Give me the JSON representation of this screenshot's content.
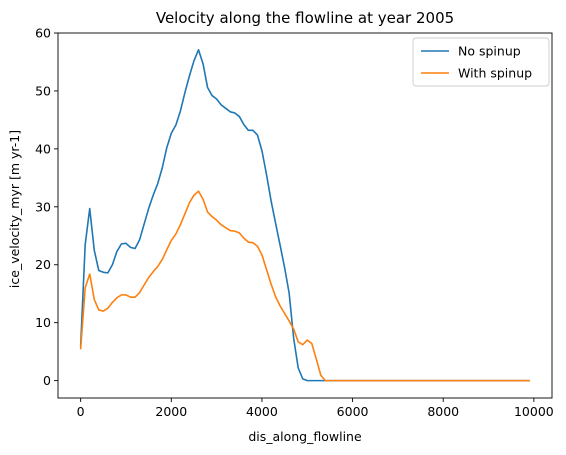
{
  "chart_data": {
    "type": "line",
    "title": "Velocity along the flowline at year 2005",
    "xlabel": "dis_along_flowline",
    "ylabel": "ice_velocity_myr [m yr-1]",
    "xlim": [
      -500,
      10400
    ],
    "ylim": [
      -3,
      60
    ],
    "xticks": [
      0,
      2000,
      4000,
      6000,
      8000,
      10000
    ],
    "yticks": [
      0,
      10,
      20,
      30,
      40,
      50,
      60
    ],
    "grid": false,
    "legend_position": "top-right",
    "series": [
      {
        "name": "No spinup",
        "color": "#1f77b4",
        "x": [
          0,
          100,
          200,
          300,
          400,
          500,
          600,
          700,
          800,
          900,
          1000,
          1100,
          1200,
          1300,
          1400,
          1500,
          1600,
          1700,
          1800,
          1900,
          2000,
          2100,
          2200,
          2300,
          2400,
          2500,
          2600,
          2700,
          2800,
          2900,
          3000,
          3100,
          3200,
          3300,
          3400,
          3500,
          3600,
          3700,
          3800,
          3900,
          4000,
          4100,
          4200,
          4300,
          4400,
          4500,
          4600,
          4700,
          4800,
          4900,
          5000,
          5100,
          5200,
          5300,
          5400,
          5500,
          6000,
          7000,
          8000,
          9000,
          9900
        ],
        "values": [
          6,
          23.5,
          29.7,
          22.5,
          19,
          18.7,
          18.6,
          20,
          22.3,
          23.6,
          23.7,
          23,
          22.8,
          24.3,
          27,
          29.7,
          32,
          34,
          36.7,
          40.2,
          42.7,
          44.1,
          46.5,
          49.7,
          52.6,
          55.2,
          57.1,
          54.7,
          50.6,
          49.2,
          48.6,
          47.6,
          47,
          46.4,
          46.2,
          45.6,
          44.2,
          43.2,
          43.2,
          42.4,
          39.7,
          35.6,
          31.1,
          27.2,
          23.4,
          19.5,
          15.1,
          7.3,
          2.2,
          0.3,
          0,
          0,
          0,
          0,
          0,
          0,
          0,
          0,
          0,
          0,
          0
        ]
      },
      {
        "name": "With spinup",
        "color": "#ff7f0e",
        "x": [
          0,
          100,
          200,
          300,
          400,
          500,
          600,
          700,
          800,
          900,
          1000,
          1100,
          1200,
          1300,
          1400,
          1500,
          1600,
          1700,
          1800,
          1900,
          2000,
          2100,
          2200,
          2300,
          2400,
          2500,
          2600,
          2700,
          2800,
          2900,
          3000,
          3100,
          3200,
          3300,
          3400,
          3500,
          3600,
          3700,
          3800,
          3900,
          4000,
          4100,
          4200,
          4300,
          4400,
          4500,
          4600,
          4700,
          4800,
          4900,
          5000,
          5100,
          5200,
          5300,
          5400,
          5500,
          6000,
          7000,
          8000,
          9000,
          9900
        ],
        "values": [
          5.5,
          16,
          18.4,
          14,
          12.2,
          12,
          12.5,
          13.5,
          14.3,
          14.8,
          14.8,
          14.4,
          14.4,
          15.2,
          16.5,
          17.8,
          18.8,
          19.7,
          20.9,
          22.6,
          24.2,
          25.3,
          26.9,
          28.8,
          30.7,
          32,
          32.7,
          31.3,
          29.1,
          28.3,
          27.7,
          26.9,
          26.4,
          25.9,
          25.8,
          25.5,
          24.6,
          23.9,
          23.8,
          23.2,
          21.7,
          19.2,
          16.7,
          14.5,
          12.9,
          11.6,
          10.3,
          8.9,
          6.7,
          6.2,
          7,
          6.4,
          3.7,
          0.9,
          0,
          0,
          0,
          0,
          0,
          0,
          0
        ]
      }
    ]
  }
}
